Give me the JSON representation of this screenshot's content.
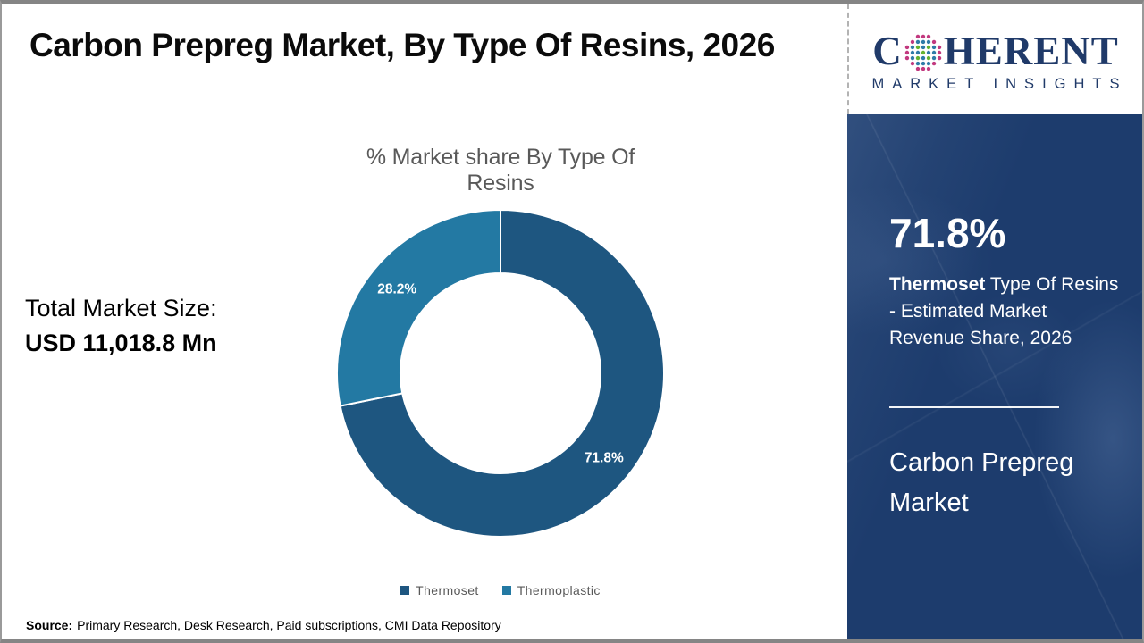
{
  "page": {
    "title": "Carbon Prepreg Market, By Type Of Resins, 2026",
    "source_label": "Source:",
    "source_text": "Primary Research, Desk Research, Paid subscriptions, CMI Data Repository"
  },
  "logo": {
    "brand_c": "C",
    "brand_rest": "HERENT",
    "subtitle": "MARKET INSIGHTS",
    "navy": "#203a69",
    "globe_colors": {
      "outer": "#c2397f",
      "mid": "#2f7ca8",
      "inner": "#66b42f"
    }
  },
  "left_panel": {
    "total_label": "Total Market Size:",
    "total_value": "USD 11,018.8 Mn"
  },
  "sidebar": {
    "background": "#1d3c6d",
    "headline_value": "71.8%",
    "description_bold": "Thermoset",
    "description_rest": " Type Of Resins - Estimated Market Revenue Share, 2026",
    "footer_title": "Carbon Prepreg Market"
  },
  "chart_data": {
    "type": "pie",
    "donut": true,
    "title": "% Market share By Type Of Resins",
    "categories": [
      "Thermoset",
      "Thermoplastic"
    ],
    "values": [
      71.8,
      28.2
    ],
    "labels": [
      "71.8%",
      "28.2%"
    ],
    "colors": [
      "#1e5680",
      "#2379a3"
    ],
    "start_angle_deg": 0,
    "direction": "clockwise",
    "inner_radius_ratio": 0.61,
    "legend_position": "bottom",
    "label_color": "#ffffff"
  }
}
